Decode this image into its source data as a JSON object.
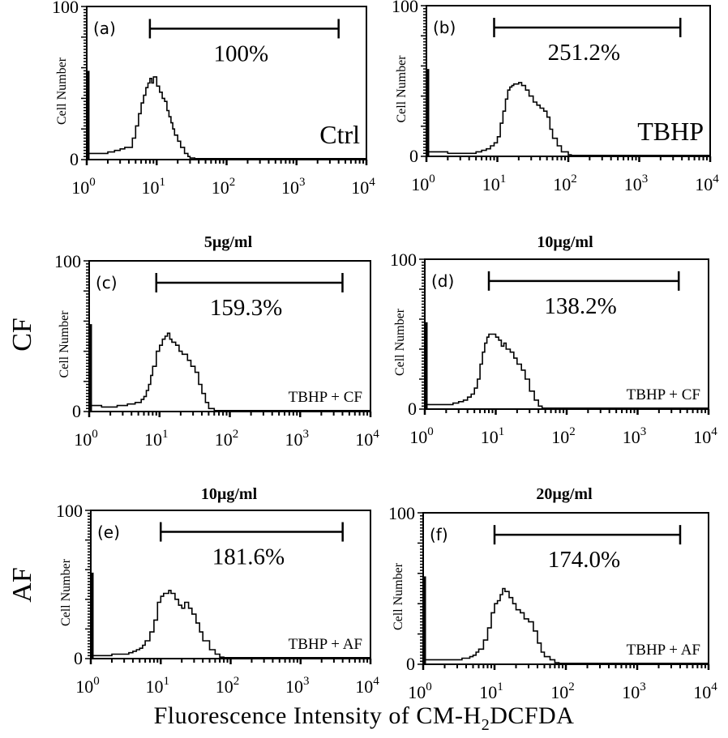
{
  "chart_data": [
    {
      "type": "line",
      "panel": "(a)",
      "title": "",
      "condition": "Ctrl",
      "percent_label": "100%",
      "xlabel": "",
      "ylabel": "Cell Number",
      "xscale": "log",
      "xlim": [
        1,
        10000
      ],
      "ylim": [
        0,
        100
      ],
      "xticks": [
        "10^0",
        "10^1",
        "10^2",
        "10^3",
        "10^4"
      ],
      "yticks": [
        "0",
        "100"
      ],
      "gate": [
        8,
        4000
      ],
      "x": [
        1,
        1.5,
        2,
        2.5,
        3,
        3.5,
        4,
        4.5,
        5,
        5.5,
        6,
        6.5,
        7,
        7.5,
        8,
        8.5,
        9,
        10,
        11,
        12,
        13,
        14,
        15,
        16,
        17,
        18,
        20,
        22,
        25,
        28,
        30,
        35
      ],
      "y": [
        4,
        4,
        5,
        6,
        7,
        8,
        8,
        14,
        22,
        30,
        37,
        42,
        47,
        50,
        53,
        50,
        54,
        48,
        44,
        40,
        38,
        32,
        28,
        24,
        20,
        16,
        12,
        8,
        4,
        2,
        1,
        0
      ]
    },
    {
      "type": "line",
      "panel": "(b)",
      "condition": "TBHP",
      "percent_label": "251.2%",
      "ylabel": "Cell Number",
      "xscale": "log",
      "xlim": [
        1,
        10000
      ],
      "ylim": [
        0,
        100
      ],
      "xticks": [
        "10^0",
        "10^1",
        "10^2",
        "10^3",
        "10^4"
      ],
      "yticks": [
        "0",
        "100"
      ],
      "gate": [
        9,
        3800
      ],
      "x": [
        1,
        2,
        3,
        4,
        5,
        6,
        7,
        8,
        9,
        10,
        11,
        12,
        13,
        14,
        15,
        16,
        17,
        18,
        20,
        22,
        25,
        28,
        32,
        36,
        40,
        45,
        50,
        55,
        60,
        70,
        80,
        100,
        110
      ],
      "y": [
        3,
        2,
        2,
        2,
        3,
        4,
        5,
        7,
        9,
        13,
        22,
        30,
        38,
        44,
        46,
        47,
        48,
        48,
        49,
        47,
        44,
        40,
        36,
        34,
        32,
        30,
        26,
        18,
        12,
        7,
        3,
        1,
        0
      ]
    },
    {
      "type": "line",
      "panel": "(c)",
      "title": "5µg/ml",
      "row_label": "CF",
      "condition": "TBHP + CF",
      "percent_label": "159.3%",
      "ylabel": "Cell Number",
      "xscale": "log",
      "xlim": [
        1,
        10000
      ],
      "ylim": [
        0,
        100
      ],
      "xticks": [
        "10^0",
        "10^1",
        "10^2",
        "10^3",
        "10^4"
      ],
      "yticks": [
        "0",
        "100"
      ],
      "gate": [
        9,
        4000
      ],
      "x": [
        1,
        1.5,
        2,
        2.5,
        3,
        3.5,
        4,
        4.5,
        5,
        5.5,
        6,
        6.5,
        7,
        7.5,
        8,
        9,
        10,
        11,
        12,
        13,
        14,
        15,
        17,
        19,
        21,
        23,
        25,
        28,
        32,
        36,
        40,
        45,
        50,
        60
      ],
      "y": [
        4,
        3,
        3,
        4,
        4,
        5,
        5,
        6,
        6,
        8,
        10,
        14,
        18,
        24,
        30,
        40,
        44,
        48,
        50,
        52,
        48,
        46,
        44,
        40,
        38,
        38,
        34,
        30,
        26,
        18,
        12,
        6,
        2,
        0
      ]
    },
    {
      "type": "line",
      "panel": "(d)",
      "title": "10µg/ml",
      "row_label": "CF",
      "condition": "TBHP + CF",
      "percent_label": "138.2%",
      "ylabel": "Cell Number",
      "xscale": "log",
      "xlim": [
        1,
        10000
      ],
      "ylim": [
        0,
        100
      ],
      "xticks": [
        "10^0",
        "10^1",
        "10^2",
        "10^3",
        "10^4"
      ],
      "yticks": [
        "0",
        "100"
      ],
      "gate": [
        8,
        3800
      ],
      "x": [
        1,
        1.5,
        2,
        2.5,
        3,
        3.5,
        4,
        4.5,
        5,
        5.5,
        6,
        6.5,
        7,
        7.5,
        8,
        9,
        10,
        11,
        12,
        13,
        14,
        16,
        18,
        20,
        23,
        26,
        30,
        35,
        40,
        45
      ],
      "y": [
        3,
        3,
        3,
        4,
        5,
        6,
        8,
        10,
        14,
        20,
        30,
        38,
        44,
        48,
        50,
        50,
        48,
        46,
        42,
        44,
        40,
        38,
        34,
        30,
        26,
        20,
        12,
        6,
        2,
        0
      ]
    },
    {
      "type": "line",
      "panel": "(e)",
      "title": "10µg/ml",
      "row_label": "AF",
      "condition": "TBHP + AF",
      "percent_label": "181.6%",
      "ylabel": "Cell Number",
      "xscale": "log",
      "xlim": [
        1,
        10000
      ],
      "ylim": [
        0,
        100
      ],
      "xticks": [
        "10^0",
        "10^1",
        "10^2",
        "10^3",
        "10^4"
      ],
      "yticks": [
        "0",
        "100"
      ],
      "gate": [
        10,
        4000
      ],
      "x": [
        1,
        1.5,
        2,
        2.5,
        3,
        3.5,
        4,
        4.5,
        5,
        5.5,
        6,
        7,
        8,
        9,
        10,
        11,
        12,
        13,
        14,
        16,
        18,
        20,
        22,
        25,
        28,
        32,
        36,
        40,
        50,
        60,
        70,
        80
      ],
      "y": [
        2,
        2,
        3,
        3,
        3,
        4,
        5,
        6,
        7,
        9,
        12,
        18,
        26,
        38,
        42,
        44,
        44,
        46,
        44,
        40,
        36,
        34,
        38,
        34,
        30,
        24,
        18,
        12,
        6,
        3,
        1,
        0
      ]
    },
    {
      "type": "line",
      "panel": "(f)",
      "title": "20µg/ml",
      "row_label": "AF",
      "condition": "TBHP + AF",
      "percent_label": "174.0%",
      "ylabel": "Cell Number",
      "xscale": "log",
      "xlim": [
        1,
        10000
      ],
      "ylim": [
        0,
        100
      ],
      "xticks": [
        "10^0",
        "10^1",
        "10^2",
        "10^3",
        "10^4"
      ],
      "yticks": [
        "0",
        "100"
      ],
      "gate": [
        10,
        4000
      ],
      "x": [
        1,
        1.5,
        2,
        2.5,
        3,
        3.5,
        4,
        4.5,
        5,
        5.5,
        6,
        7,
        8,
        9,
        10,
        11,
        12,
        13,
        14,
        16,
        18,
        20,
        23,
        26,
        30,
        35,
        40,
        45,
        50,
        60,
        70,
        80
      ],
      "y": [
        3,
        3,
        3,
        3,
        3,
        4,
        4,
        5,
        6,
        8,
        10,
        16,
        24,
        34,
        40,
        42,
        46,
        50,
        48,
        44,
        40,
        36,
        34,
        30,
        28,
        22,
        14,
        8,
        5,
        3,
        1,
        0
      ]
    }
  ],
  "figure": {
    "row_labels": [
      "CF",
      "AF"
    ],
    "x_axis_title_main": "Fluorescence Intensity of CM-H",
    "x_axis_title_sub": "2",
    "x_axis_title_end": "DCFDA",
    "tick_base": "10",
    "tick_exponents": [
      "0",
      "1",
      "2",
      "3",
      "4"
    ],
    "ymax_label": "100",
    "ymin_label": "0"
  }
}
